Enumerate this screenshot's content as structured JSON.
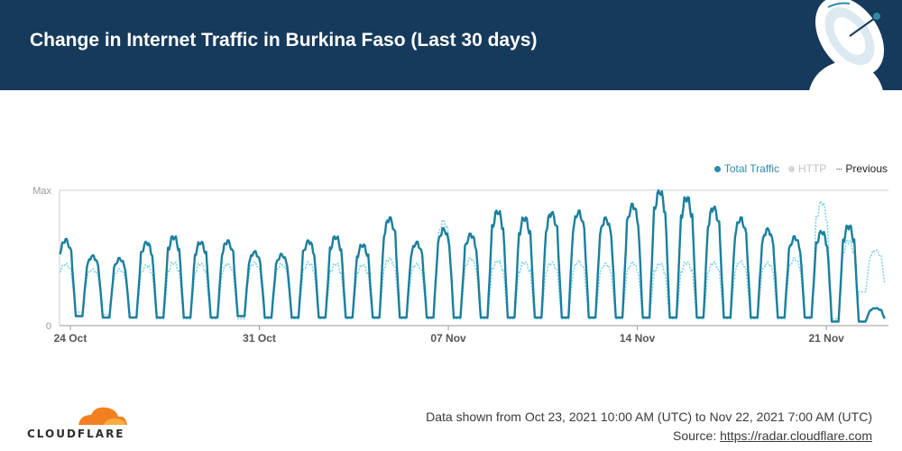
{
  "header": {
    "title": "Change in Internet Traffic in Burkina Faso (Last 30 days)"
  },
  "legend": [
    {
      "label": "Total Traffic",
      "color": "#2a8ca8",
      "marker": "dot"
    },
    {
      "label": "HTTP",
      "color": "#cfcfcf",
      "marker": "dot"
    },
    {
      "label": "Previous",
      "color": "#222222",
      "marker": "dots"
    }
  ],
  "footer": {
    "brand": "CLOUDFLARE",
    "date_range": "Data shown from Oct 23, 2021 10:00 AM (UTC) to Nov 22, 2021 7:00 AM (UTC)",
    "source_prefix": "Source:",
    "source_link": "https://radar.cloudflare.com"
  },
  "chart_data": {
    "type": "line",
    "x_ticks": [
      "24 Oct",
      "31 Oct",
      "07 Nov",
      "14 Nov",
      "21 Nov"
    ],
    "y_ticks": [
      "Max",
      "0"
    ],
    "ylim": [
      0,
      1
    ],
    "grid": true,
    "legend_position": "top-right",
    "colors": {
      "total": "#1a7f9d",
      "previous": "#7fd3e6",
      "axis": "#cccccc",
      "header": "#163a5b"
    },
    "series": [
      {
        "name": "Total Traffic",
        "style": "solid",
        "daily": [
          {
            "day": "Oct 23",
            "peak": 0.64,
            "trough": 0.07
          },
          {
            "day": "Oct 24",
            "peak": 0.52,
            "trough": 0.07
          },
          {
            "day": "Oct 25",
            "peak": 0.5,
            "trough": 0.06
          },
          {
            "day": "Oct 26",
            "peak": 0.62,
            "trough": 0.06
          },
          {
            "day": "Oct 27",
            "peak": 0.66,
            "trough": 0.06
          },
          {
            "day": "Oct 28",
            "peak": 0.62,
            "trough": 0.06
          },
          {
            "day": "Oct 29",
            "peak": 0.63,
            "trough": 0.06
          },
          {
            "day": "Oct 30",
            "peak": 0.55,
            "trough": 0.07
          },
          {
            "day": "Oct 31",
            "peak": 0.53,
            "trough": 0.06
          },
          {
            "day": "Nov 01",
            "peak": 0.63,
            "trough": 0.06
          },
          {
            "day": "Nov 02",
            "peak": 0.66,
            "trough": 0.06
          },
          {
            "day": "Nov 03",
            "peak": 0.6,
            "trough": 0.06
          },
          {
            "day": "Nov 04",
            "peak": 0.8,
            "trough": 0.06
          },
          {
            "day": "Nov 05",
            "peak": 0.62,
            "trough": 0.06
          },
          {
            "day": "Nov 06",
            "peak": 0.72,
            "trough": 0.06
          },
          {
            "day": "Nov 07",
            "peak": 0.68,
            "trough": 0.06
          },
          {
            "day": "Nov 08",
            "peak": 0.85,
            "trough": 0.06
          },
          {
            "day": "Nov 09",
            "peak": 0.8,
            "trough": 0.06
          },
          {
            "day": "Nov 10",
            "peak": 0.84,
            "trough": 0.06
          },
          {
            "day": "Nov 11",
            "peak": 0.85,
            "trough": 0.06
          },
          {
            "day": "Nov 12",
            "peak": 0.8,
            "trough": 0.06
          },
          {
            "day": "Nov 13",
            "peak": 0.9,
            "trough": 0.06
          },
          {
            "day": "Nov 14",
            "peak": 1.0,
            "trough": 0.06
          },
          {
            "day": "Nov 15",
            "peak": 0.95,
            "trough": 0.06
          },
          {
            "day": "Nov 16",
            "peak": 0.88,
            "trough": 0.06
          },
          {
            "day": "Nov 17",
            "peak": 0.8,
            "trough": 0.06
          },
          {
            "day": "Nov 18",
            "peak": 0.72,
            "trough": 0.06
          },
          {
            "day": "Nov 19",
            "peak": 0.66,
            "trough": 0.06
          },
          {
            "day": "Nov 20",
            "peak": 0.7,
            "trough": 0.06
          },
          {
            "day": "Nov 21",
            "peak": 0.74,
            "trough": 0.03
          },
          {
            "day": "Nov 22",
            "peak": 0.13,
            "trough": 0.03
          }
        ]
      },
      {
        "name": "Previous",
        "style": "dotted",
        "daily": [
          {
            "day": "Oct 23",
            "peak": 0.46,
            "trough": 0.12
          },
          {
            "day": "Oct 24",
            "peak": 0.42,
            "trough": 0.1
          },
          {
            "day": "Oct 25",
            "peak": 0.42,
            "trough": 0.08
          },
          {
            "day": "Oct 26",
            "peak": 0.45,
            "trough": 0.06
          },
          {
            "day": "Oct 27",
            "peak": 0.47,
            "trough": 0.05
          },
          {
            "day": "Oct 28",
            "peak": 0.46,
            "trough": 0.05
          },
          {
            "day": "Oct 29",
            "peak": 0.46,
            "trough": 0.05
          },
          {
            "day": "Oct 30",
            "peak": 0.47,
            "trough": 0.05
          },
          {
            "day": "Oct 31",
            "peak": 0.46,
            "trough": 0.05
          },
          {
            "day": "Nov 01",
            "peak": 0.47,
            "trough": 0.05
          },
          {
            "day": "Nov 02",
            "peak": 0.46,
            "trough": 0.05
          },
          {
            "day": "Nov 03",
            "peak": 0.45,
            "trough": 0.05
          },
          {
            "day": "Nov 04",
            "peak": 0.5,
            "trough": 0.05
          },
          {
            "day": "Nov 05",
            "peak": 0.46,
            "trough": 0.05
          },
          {
            "day": "Nov 06",
            "peak": 0.78,
            "trough": 0.05
          },
          {
            "day": "Nov 07",
            "peak": 0.5,
            "trough": 0.05
          },
          {
            "day": "Nov 08",
            "peak": 0.48,
            "trough": 0.05
          },
          {
            "day": "Nov 09",
            "peak": 0.47,
            "trough": 0.05
          },
          {
            "day": "Nov 10",
            "peak": 0.47,
            "trough": 0.05
          },
          {
            "day": "Nov 11",
            "peak": 0.48,
            "trough": 0.05
          },
          {
            "day": "Nov 12",
            "peak": 0.46,
            "trough": 0.05
          },
          {
            "day": "Nov 13",
            "peak": 0.47,
            "trough": 0.05
          },
          {
            "day": "Nov 14",
            "peak": 0.46,
            "trough": 0.05
          },
          {
            "day": "Nov 15",
            "peak": 0.47,
            "trough": 0.05
          },
          {
            "day": "Nov 16",
            "peak": 0.47,
            "trough": 0.05
          },
          {
            "day": "Nov 17",
            "peak": 0.48,
            "trough": 0.05
          },
          {
            "day": "Nov 18",
            "peak": 0.47,
            "trough": 0.05
          },
          {
            "day": "Nov 19",
            "peak": 0.5,
            "trough": 0.05
          },
          {
            "day": "Nov 20",
            "peak": 0.92,
            "trough": 0.05
          },
          {
            "day": "Nov 21",
            "peak": 0.63,
            "trough": 0.05
          },
          {
            "day": "Nov 22",
            "peak": 0.56,
            "trough": 0.25
          }
        ]
      }
    ]
  }
}
